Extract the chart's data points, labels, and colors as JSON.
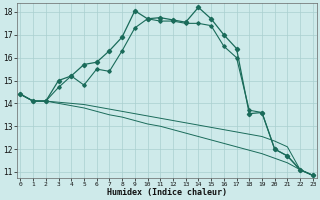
{
  "title": "",
  "xlabel": "Humidex (Indice chaleur)",
  "bg_color": "#ceeaea",
  "grid_color": "#aacfcf",
  "line_color": "#1a6b5a",
  "xlim": [
    0,
    23
  ],
  "ylim": [
    10.75,
    18.4
  ],
  "xticks": [
    0,
    1,
    2,
    3,
    4,
    5,
    6,
    7,
    8,
    9,
    10,
    11,
    12,
    13,
    14,
    15,
    16,
    17,
    18,
    19,
    20,
    21,
    22,
    23
  ],
  "yticks": [
    11,
    12,
    13,
    14,
    15,
    16,
    17,
    18
  ],
  "line1_x": [
    0,
    1,
    2,
    3,
    4,
    5,
    6,
    7,
    8,
    9,
    10,
    11,
    12,
    13,
    14,
    15,
    16,
    17,
    18,
    19,
    20,
    21,
    22,
    23
  ],
  "line1_y": [
    14.4,
    14.1,
    14.1,
    15.0,
    15.2,
    15.7,
    15.8,
    16.3,
    16.9,
    18.05,
    17.7,
    17.75,
    17.65,
    17.55,
    18.2,
    17.7,
    17.0,
    16.4,
    13.55,
    13.6,
    12.0,
    11.7,
    11.1,
    10.85
  ],
  "line2_x": [
    0,
    1,
    2,
    3,
    4,
    5,
    6,
    7,
    8,
    9,
    10,
    11,
    12,
    13,
    14,
    15,
    16,
    17,
    18,
    19,
    20,
    21,
    22,
    23
  ],
  "line2_y": [
    14.4,
    14.1,
    14.1,
    14.7,
    15.2,
    14.8,
    15.5,
    15.4,
    16.3,
    17.3,
    17.7,
    17.6,
    17.6,
    17.5,
    17.5,
    17.4,
    16.5,
    16.0,
    13.7,
    13.6,
    12.0,
    11.7,
    11.1,
    10.85
  ],
  "line3a_x": [
    0,
    1,
    2,
    3,
    4,
    5,
    6,
    7,
    8,
    9,
    10,
    11,
    12,
    13,
    14,
    15,
    16,
    17,
    18,
    19,
    20,
    21,
    22,
    23
  ],
  "line3a_y": [
    14.4,
    14.1,
    14.1,
    14.0,
    13.9,
    13.8,
    13.65,
    13.5,
    13.4,
    13.25,
    13.1,
    13.0,
    12.85,
    12.7,
    12.55,
    12.4,
    12.25,
    12.1,
    11.95,
    11.8,
    11.6,
    11.4,
    11.1,
    10.85
  ],
  "line3b_x": [
    0,
    1,
    2,
    3,
    4,
    5,
    6,
    7,
    8,
    9,
    10,
    11,
    12,
    13,
    14,
    15,
    16,
    17,
    18,
    19,
    20,
    21,
    22,
    23
  ],
  "line3b_y": [
    14.4,
    14.1,
    14.1,
    14.05,
    14.0,
    13.95,
    13.85,
    13.75,
    13.65,
    13.55,
    13.45,
    13.35,
    13.25,
    13.15,
    13.05,
    12.95,
    12.85,
    12.75,
    12.65,
    12.55,
    12.35,
    12.1,
    11.1,
    10.85
  ]
}
